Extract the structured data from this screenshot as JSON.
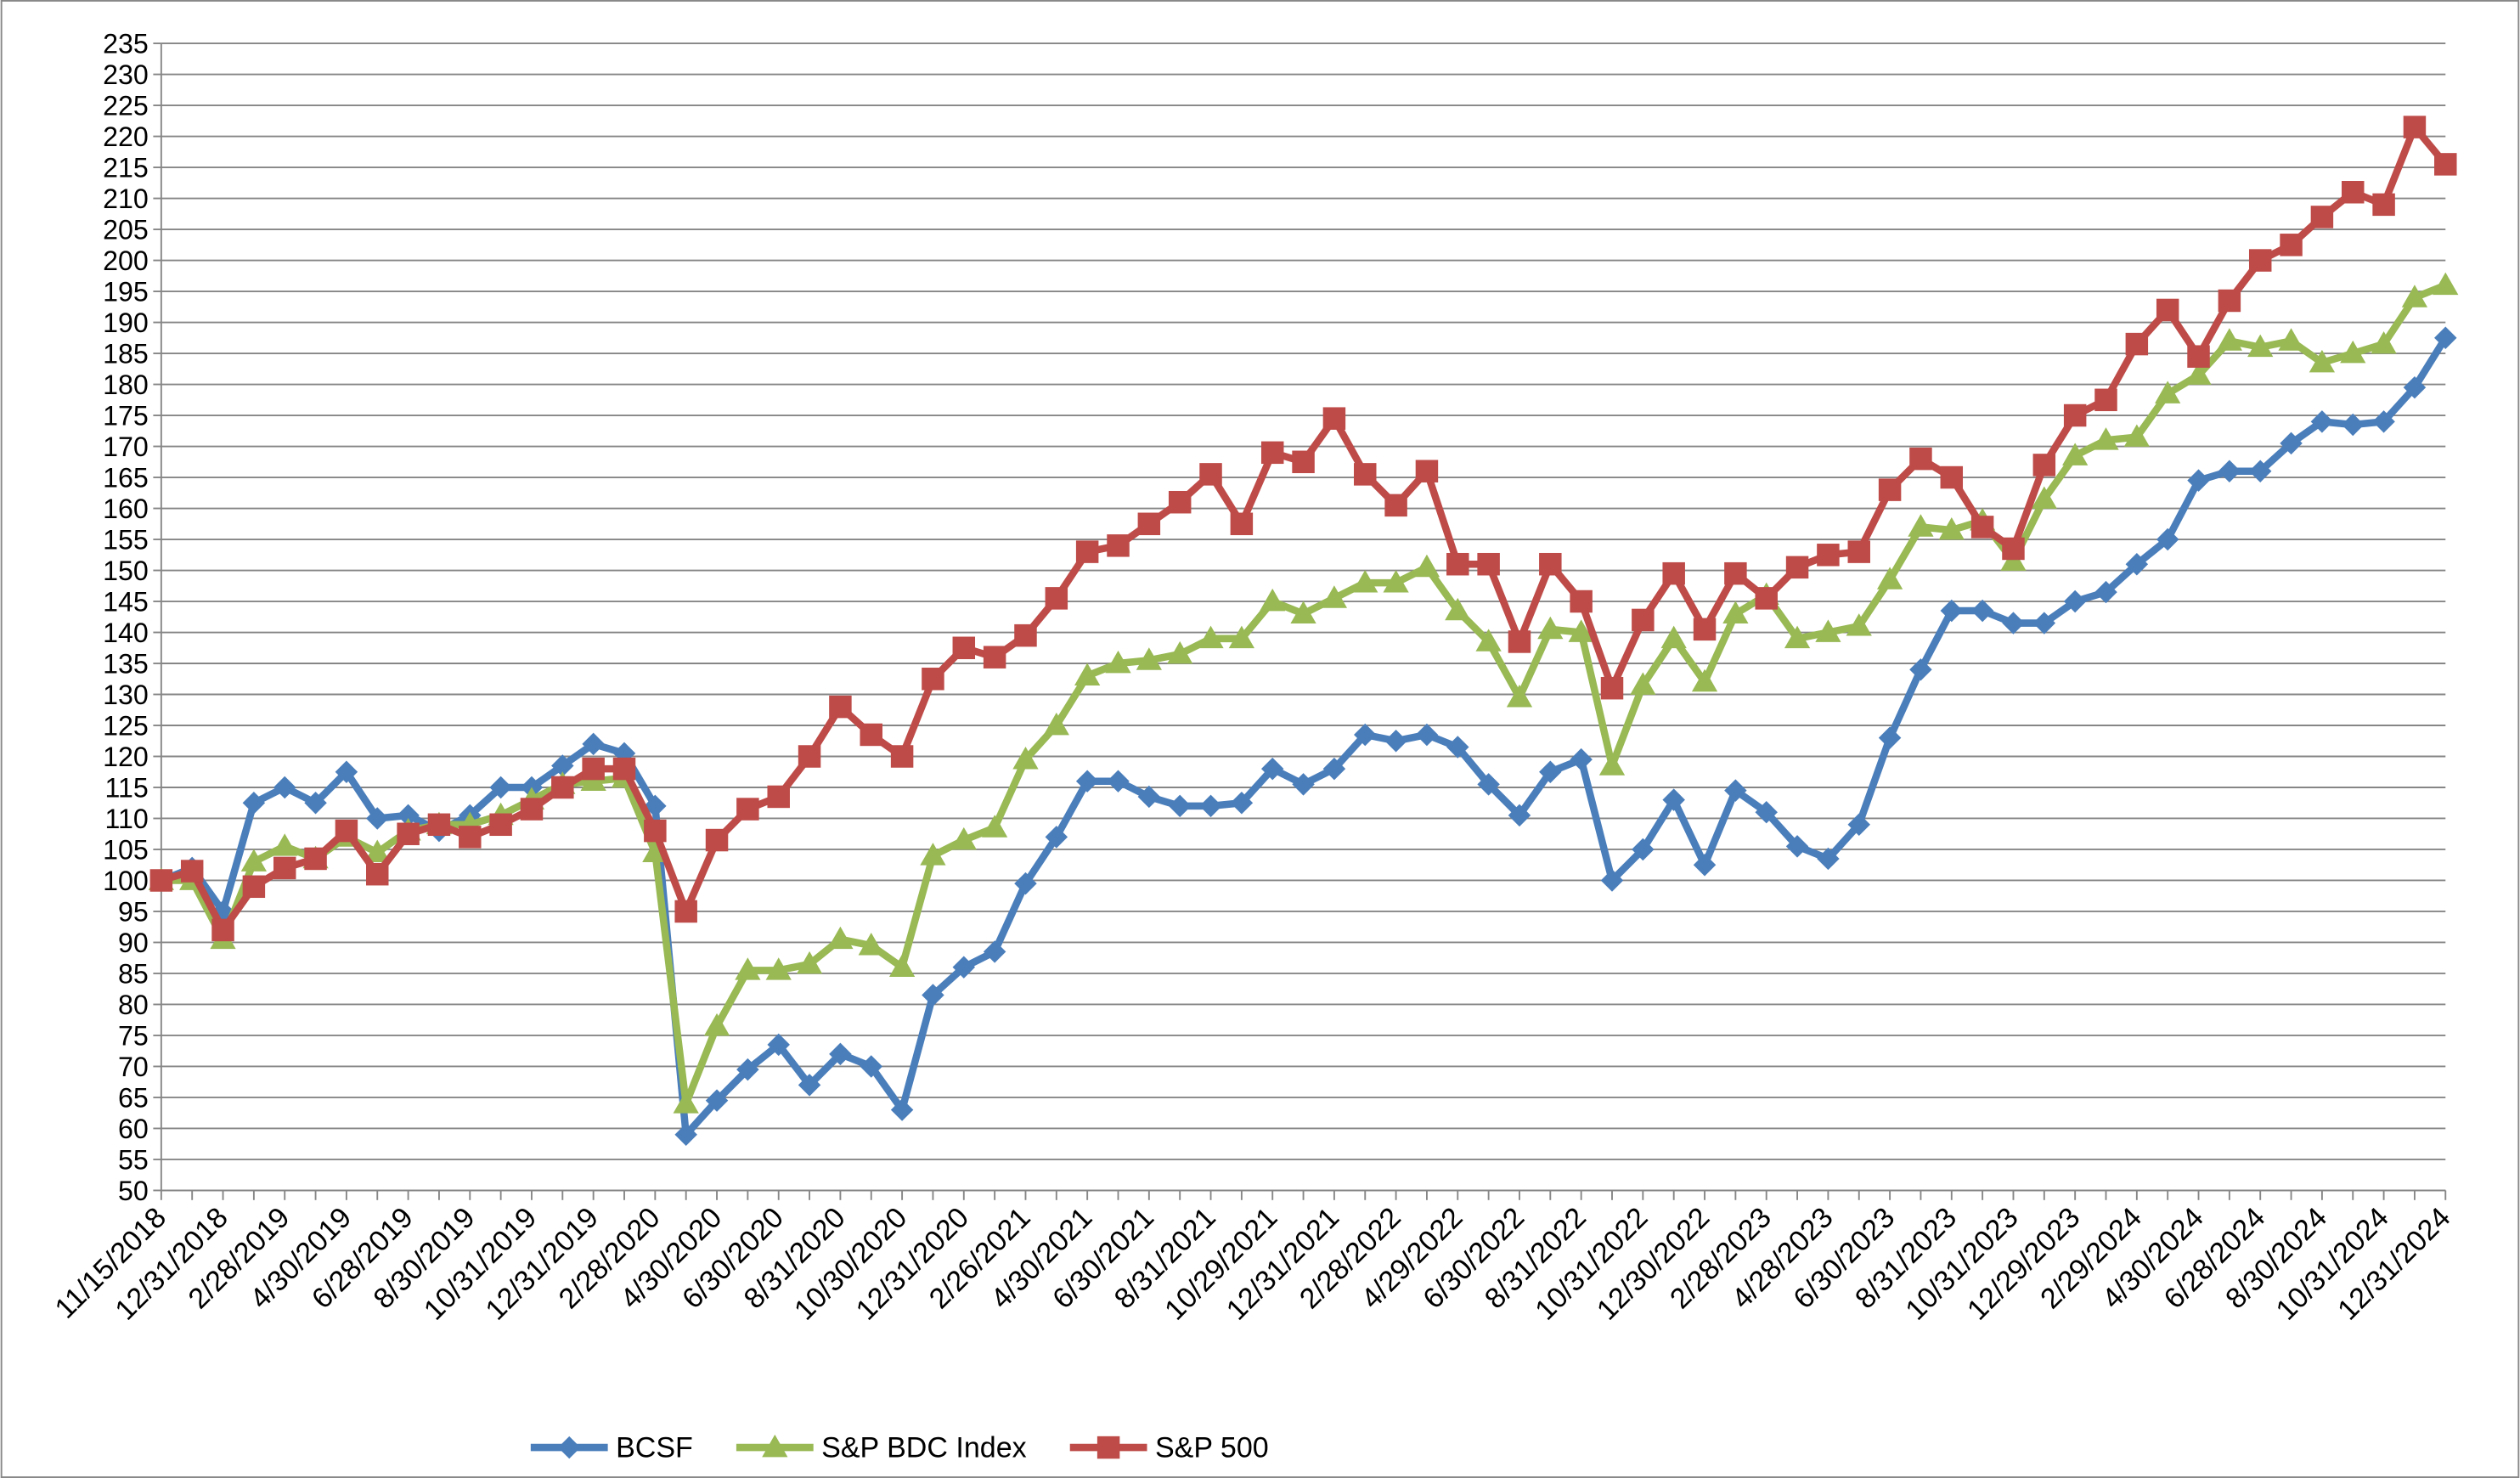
{
  "chart_data": {
    "type": "line",
    "categories": [
      "11/15/2018",
      null,
      "12/31/2018",
      null,
      "2/28/2019",
      null,
      "4/30/2019",
      null,
      "6/28/2019",
      null,
      "8/30/2019",
      null,
      "10/31/2019",
      null,
      "12/31/2019",
      null,
      "2/28/2020",
      null,
      "4/30/2020",
      null,
      "6/30/2020",
      null,
      "8/31/2020",
      null,
      "10/30/2020",
      null,
      "12/31/2020",
      null,
      "2/26/2021",
      null,
      "4/30/2021",
      null,
      "6/30/2021",
      null,
      "8/31/2021",
      null,
      "10/29/2021",
      null,
      "12/31/2021",
      null,
      "2/28/2022",
      null,
      "4/29/2022",
      null,
      "6/30/2022",
      null,
      "8/31/2022",
      null,
      "10/31/2022",
      null,
      "12/30/2022",
      null,
      "2/28/2023",
      null,
      "4/28/2023",
      null,
      "6/30/2023",
      null,
      "8/31/2023",
      null,
      "10/31/2023",
      null,
      "12/29/2023",
      null,
      "2/29/2024",
      null,
      "4/30/2024",
      null,
      "6/28/2024",
      null,
      "8/30/2024",
      null,
      "10/31/2024",
      null,
      "12/31/2024"
    ],
    "series": [
      {
        "name": "BCSF",
        "color": "#4a7ebb",
        "marker": "diamond",
        "values": [
          100,
          102,
          95,
          112.5,
          115,
          112.5,
          117.5,
          110,
          110.5,
          108,
          110.5,
          115,
          115,
          118.5,
          122,
          120.5,
          112,
          59,
          64.5,
          69.5,
          73.5,
          67,
          72,
          70,
          63,
          81.5,
          86,
          88.5,
          99.5,
          107,
          116,
          116,
          113.5,
          112,
          112,
          112.5,
          118,
          115.5,
          118,
          123.5,
          122.5,
          123.5,
          121.5,
          115.5,
          110.5,
          117.5,
          119.5,
          100,
          105,
          113,
          102.5,
          114.5,
          111,
          105.5,
          103.5,
          109,
          123,
          134,
          143.5,
          143.5,
          141.5,
          141.5,
          145,
          146.5,
          151,
          155,
          164.5,
          166,
          166,
          170.5,
          174,
          173.5,
          174,
          179.5,
          187.5
        ]
      },
      {
        "name": "S&P BDC Index",
        "color": "#98b954",
        "marker": "triangle",
        "values": [
          100,
          100,
          90.5,
          103,
          105.5,
          103.5,
          107,
          104.5,
          108,
          109,
          109,
          110.5,
          113,
          115.5,
          116,
          116.5,
          104.5,
          64,
          76.5,
          85.5,
          85.5,
          86.5,
          90.5,
          89.5,
          86,
          104,
          106.5,
          108.5,
          119.5,
          125,
          133,
          135,
          135.5,
          136.5,
          139,
          139,
          145,
          143,
          145.5,
          148,
          148,
          150.5,
          143.5,
          138.5,
          129.5,
          140.5,
          140,
          118.5,
          131.5,
          139,
          132,
          143,
          146,
          139,
          140,
          141,
          148.5,
          157,
          156.5,
          158,
          151.5,
          161.5,
          168.5,
          171,
          171.5,
          178.5,
          181.5,
          187,
          186,
          187,
          183.5,
          185,
          186.5,
          194,
          196
        ]
      },
      {
        "name": "S&P 500",
        "color": "#be4b48",
        "marker": "square",
        "values": [
          100,
          101.5,
          92,
          99,
          102,
          103.5,
          108,
          101,
          107.5,
          109,
          107,
          109,
          111.5,
          115,
          118,
          118,
          108,
          95,
          106.5,
          111.5,
          113.5,
          120,
          128,
          123.5,
          120,
          132.5,
          137.5,
          136,
          139.5,
          145.5,
          153,
          154,
          157.5,
          161,
          165.5,
          157.5,
          169,
          167.5,
          174.5,
          165.5,
          160.5,
          166,
          151,
          151,
          138.5,
          151,
          145,
          131,
          142,
          149.5,
          140.5,
          149.5,
          145.5,
          150.5,
          152.5,
          153,
          163,
          168,
          165,
          157,
          153.5,
          167,
          175,
          177.5,
          186.5,
          192,
          184.5,
          193.5,
          200,
          202.5,
          207,
          211,
          209,
          221.5,
          215.5
        ]
      }
    ],
    "ylim": [
      50,
      235
    ],
    "yticks": [
      50,
      55,
      60,
      65,
      70,
      75,
      80,
      85,
      90,
      95,
      100,
      105,
      110,
      115,
      120,
      125,
      130,
      135,
      140,
      145,
      150,
      155,
      160,
      165,
      170,
      175,
      180,
      185,
      190,
      195,
      200,
      205,
      210,
      215,
      220,
      225,
      230,
      235
    ],
    "grid": true,
    "legend": "bottom"
  }
}
